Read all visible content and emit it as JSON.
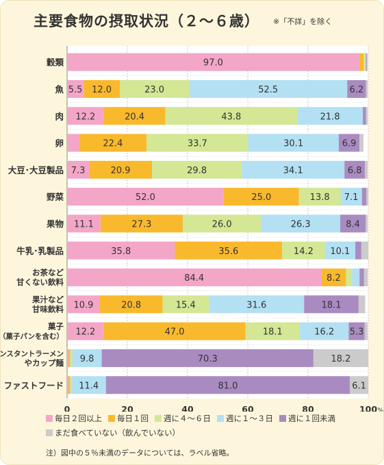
{
  "chart_data": {
    "type": "bar",
    "orientation": "horizontal",
    "stacked": true,
    "title": "主要食物の摂取状況（２〜６歳）",
    "subtitle": "※「不詳」を除く",
    "categories": [
      [
        "穀類"
      ],
      [
        "魚"
      ],
      [
        "肉"
      ],
      [
        "卵"
      ],
      [
        "大豆･大豆製品"
      ],
      [
        "野菜"
      ],
      [
        "果物"
      ],
      [
        "牛乳･乳製品"
      ],
      [
        "お茶など",
        "甘くない飲料"
      ],
      [
        "果汁など",
        "甘味飲料"
      ],
      [
        "菓子",
        "（菓子パンを含む）"
      ],
      [
        "インスタントラーメン",
        "やカップ麺"
      ],
      [
        "ファストフード"
      ]
    ],
    "series": [
      {
        "name": "毎日２回以上",
        "color": "#f3a6c8",
        "values": [
          97.0,
          5.5,
          12.2,
          4.0,
          7.3,
          52.0,
          11.1,
          35.8,
          84.4,
          10.9,
          12.2,
          0.5,
          0.5
        ]
      },
      {
        "name": "毎日１回",
        "color": "#f9b92c",
        "values": [
          1.5,
          12.0,
          20.4,
          22.4,
          20.9,
          25.0,
          27.3,
          35.6,
          8.2,
          20.8,
          47.0,
          0.5,
          0.5
        ]
      },
      {
        "name": "週に４〜６日",
        "color": "#d3e795",
        "values": [
          0.5,
          23.0,
          43.8,
          33.7,
          29.8,
          13.8,
          26.0,
          14.2,
          2.0,
          15.4,
          18.1,
          0.7,
          0.5
        ]
      },
      {
        "name": "週に１〜３日",
        "color": "#b3e0f2",
        "values": [
          0.2,
          52.5,
          21.8,
          30.1,
          34.1,
          7.1,
          26.3,
          10.1,
          2.5,
          31.6,
          16.2,
          9.8,
          11.4
        ]
      },
      {
        "name": "週に１回未満",
        "color": "#a98bc1",
        "values": [
          0.3,
          6.2,
          1.0,
          6.9,
          6.8,
          1.5,
          8.4,
          2.0,
          1.5,
          18.1,
          5.3,
          70.3,
          81.0
        ]
      },
      {
        "name": "まだ食べていない（飲んでいない）",
        "color": "#cbcbcb",
        "values": [
          0.3,
          0.6,
          0.6,
          1.3,
          0.9,
          0.6,
          0.7,
          2.3,
          1.2,
          2.2,
          1.0,
          18.2,
          6.1
        ]
      }
    ],
    "data_labels": [
      [
        "97.0",
        "",
        "",
        "",
        "",
        ""
      ],
      [
        "5.5",
        "12.0",
        "23.0",
        "52.5",
        "6.2",
        ""
      ],
      [
        "12.2",
        "20.4",
        "43.8",
        "21.8",
        "",
        ""
      ],
      [
        "",
        "22.4",
        "33.7",
        "30.1",
        "6.9",
        ""
      ],
      [
        "7.3",
        "20.9",
        "29.8",
        "34.1",
        "6.8",
        ""
      ],
      [
        "52.0",
        "25.0",
        "13.8",
        "7.1",
        "",
        ""
      ],
      [
        "11.1",
        "27.3",
        "26.0",
        "26.3",
        "8.4",
        ""
      ],
      [
        "35.8",
        "35.6",
        "14.2",
        "10.1",
        "",
        ""
      ],
      [
        "84.4",
        "8.2",
        "",
        "",
        "",
        ""
      ],
      [
        "10.9",
        "20.8",
        "15.4",
        "31.6",
        "18.1",
        ""
      ],
      [
        "12.2",
        "47.0",
        "18.1",
        "16.2",
        "5.3",
        ""
      ],
      [
        "",
        "",
        "",
        "9.8",
        "70.3",
        "18.2"
      ],
      [
        "",
        "",
        "",
        "11.4",
        "81.0",
        "6.1"
      ]
    ],
    "xlim": [
      0,
      100
    ],
    "xticks": [
      "0",
      "20",
      "40",
      "60",
      "80",
      "100"
    ],
    "x_unit": "(%)",
    "legend_position": "bottom",
    "grid": true
  },
  "footnote": "注）図中の５％未満のデータについては、ラベル省略。"
}
